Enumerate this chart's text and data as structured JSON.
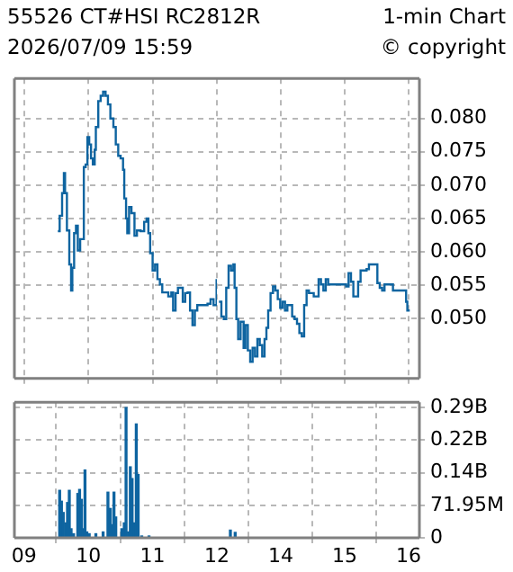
{
  "chart_data": [
    {
      "type": "step",
      "title": "55526 CT#HSI  RC2812R",
      "subtitle": "2026/07/09 15:59",
      "annotations": [
        "1-min Chart",
        "© copyright"
      ],
      "x": [
        9.526,
        9.554,
        9.592,
        9.62,
        9.638,
        9.667,
        9.704,
        9.732,
        9.751,
        9.779,
        9.808,
        9.836,
        9.873,
        9.901,
        9.93,
        9.958,
        9.986,
        10.014,
        10.042,
        10.07,
        10.099,
        10.117,
        10.155,
        10.192,
        10.23,
        10.268,
        10.305,
        10.343,
        10.39,
        10.427,
        10.465,
        10.502,
        10.54,
        10.559,
        10.587,
        10.606,
        10.634,
        10.671,
        10.718,
        10.756,
        10.812,
        10.869,
        10.906,
        10.934,
        10.962,
        11.0,
        11.038,
        11.075,
        11.113,
        11.15,
        11.207,
        11.244,
        11.291,
        11.319,
        11.357,
        11.394,
        11.432,
        11.469,
        11.507,
        11.545,
        11.582,
        11.62,
        11.657,
        11.695,
        11.761,
        11.854,
        11.901,
        11.948,
        11.995
      ],
      "values": [
        0.0631,
        0.0654,
        0.0688,
        0.0718,
        0.0688,
        0.0632,
        0.0581,
        0.0542,
        0.0576,
        0.0628,
        0.0639,
        0.0602,
        0.0619,
        0.0619,
        0.0727,
        0.0731,
        0.0772,
        0.0761,
        0.074,
        0.0731,
        0.0753,
        0.0787,
        0.0826,
        0.0834,
        0.084,
        0.0834,
        0.0821,
        0.08,
        0.0787,
        0.0761,
        0.0744,
        0.074,
        0.0723,
        0.068,
        0.065,
        0.0628,
        0.0667,
        0.0658,
        0.0624,
        0.0632,
        0.0631,
        0.0645,
        0.065,
        0.0628,
        0.0598,
        0.0572,
        0.0581,
        0.0559,
        0.0551,
        0.0539,
        0.0539,
        0.0533,
        0.0539,
        0.0512,
        0.0538,
        0.0546,
        0.0546,
        0.0525,
        0.0538,
        0.0539,
        0.0512,
        0.049,
        0.0512,
        0.052,
        0.052,
        0.0522,
        0.0529,
        0.052,
        0.0559
      ],
      "color": "#0e64a0",
      "xlim": [
        8.85,
        12
      ],
      "xticks": [
        9,
        10,
        11,
        12
      ],
      "ylim": [
        0.041,
        0.086
      ],
      "yticks": [
        0.05,
        0.055,
        0.06,
        0.065,
        0.07,
        0.075,
        0.08
      ],
      "grid": true,
      "tick_labels": false
    },
    {
      "type": "step",
      "x": [
        13.033,
        13.07,
        13.108,
        13.146,
        13.183,
        13.221,
        13.258,
        13.277,
        13.305,
        13.333,
        13.371,
        13.418,
        13.446,
        13.484,
        13.521,
        13.559,
        13.596,
        13.634,
        13.671,
        13.709,
        13.746,
        13.775,
        13.803,
        13.84,
        13.878,
        13.915,
        13.953,
        13.991,
        14.028,
        14.066,
        14.103,
        14.141,
        14.178,
        14.216,
        14.254,
        14.291,
        14.329,
        14.366,
        14.404,
        14.441,
        14.516,
        14.592,
        14.629,
        14.667,
        14.704,
        14.742,
        15.023,
        15.061,
        15.099,
        15.136,
        15.174,
        15.211,
        15.249,
        15.343,
        15.38,
        15.493,
        15.512,
        15.549,
        15.587,
        15.624,
        15.756,
        15.962,
        15.981,
        16.019
      ],
      "values": [
        0.0525,
        0.0503,
        0.0499,
        0.0546,
        0.0579,
        0.0572,
        0.0581,
        0.0546,
        0.0499,
        0.0469,
        0.0495,
        0.0456,
        0.049,
        0.0452,
        0.0435,
        0.0456,
        0.0443,
        0.0469,
        0.046,
        0.0443,
        0.0469,
        0.0486,
        0.0512,
        0.0538,
        0.0548,
        0.0542,
        0.0529,
        0.0516,
        0.0525,
        0.0512,
        0.052,
        0.052,
        0.0503,
        0.0499,
        0.0492,
        0.0478,
        0.0473,
        0.052,
        0.0542,
        0.0538,
        0.0533,
        0.0559,
        0.0551,
        0.0542,
        0.0559,
        0.0551,
        0.0548,
        0.0568,
        0.0555,
        0.0533,
        0.0533,
        0.0555,
        0.0572,
        0.0574,
        0.0581,
        0.0581,
        0.0553,
        0.0546,
        0.0542,
        0.0551,
        0.0542,
        0.0525,
        0.0512,
        0.0512
      ],
      "color": "#0e64a0",
      "xlim": [
        13,
        16.17
      ],
      "xticks": [
        14,
        15,
        16
      ],
      "ylim": [
        0.041,
        0.086
      ],
      "yticks": [
        {
          "value": 0.05,
          "label": "0.050"
        },
        {
          "value": 0.055,
          "label": "0.055"
        },
        {
          "value": 0.06,
          "label": "0.060"
        },
        {
          "value": 0.065,
          "label": "0.065"
        },
        {
          "value": 0.07,
          "label": "0.070"
        },
        {
          "value": 0.075,
          "label": "0.075"
        },
        {
          "value": 0.08,
          "label": "0.080"
        }
      ],
      "grid": true,
      "tick_labels": "y"
    },
    {
      "type": "bar",
      "x": [
        9.554,
        9.582,
        9.61,
        9.648,
        9.676,
        9.704,
        9.732,
        9.77,
        9.836,
        9.864,
        9.892,
        9.92,
        9.948,
        9.977,
        10.014,
        10.117,
        10.23,
        10.305,
        10.343,
        10.371,
        10.399,
        10.427,
        10.521,
        10.559,
        10.587,
        10.624,
        10.653,
        10.681,
        10.718,
        10.746,
        10.775,
        10.831,
        10.944
      ],
      "values": [
        105000000,
        81000000,
        56000000,
        33000000,
        78000000,
        105000000,
        20000000,
        9000000,
        98000000,
        107000000,
        85000000,
        20000000,
        150000000,
        13000000,
        9000000,
        9000000,
        13000000,
        101000000,
        65000000,
        29000000,
        101000000,
        46000000,
        20000000,
        33000000,
        288000000,
        13000000,
        157000000,
        131000000,
        33000000,
        252000000,
        140000000,
        4000000,
        4000000
      ],
      "color": "#0e64a0",
      "xlim": [
        8.85,
        12
      ],
      "xticks": [
        {
          "value": 9,
          "label": "09"
        },
        10,
        11,
        12
      ],
      "ylim": [
        0,
        300000000
      ],
      "yticks": [
        0,
        71950000,
        143900000,
        215850000,
        287800000
      ],
      "grid": true,
      "tick_labels": "x"
    },
    {
      "type": "bar",
      "x": [
        13.211,
        13.286
      ],
      "values": [
        17000000,
        12000000
      ],
      "color": "#0e64a0",
      "xlim": [
        13,
        16.17
      ],
      "xticks": [
        14,
        15,
        16
      ],
      "ylim": [
        0,
        300000000
      ],
      "yticks": [
        0,
        {
          "value": 71950000,
          "label": "71.95M"
        },
        {
          "value": 143900000,
          "label": "0.14B"
        },
        {
          "value": 215850000,
          "label": "0.22B"
        },
        {
          "value": 287800000,
          "label": "0.29B"
        }
      ],
      "grid": true
    }
  ]
}
